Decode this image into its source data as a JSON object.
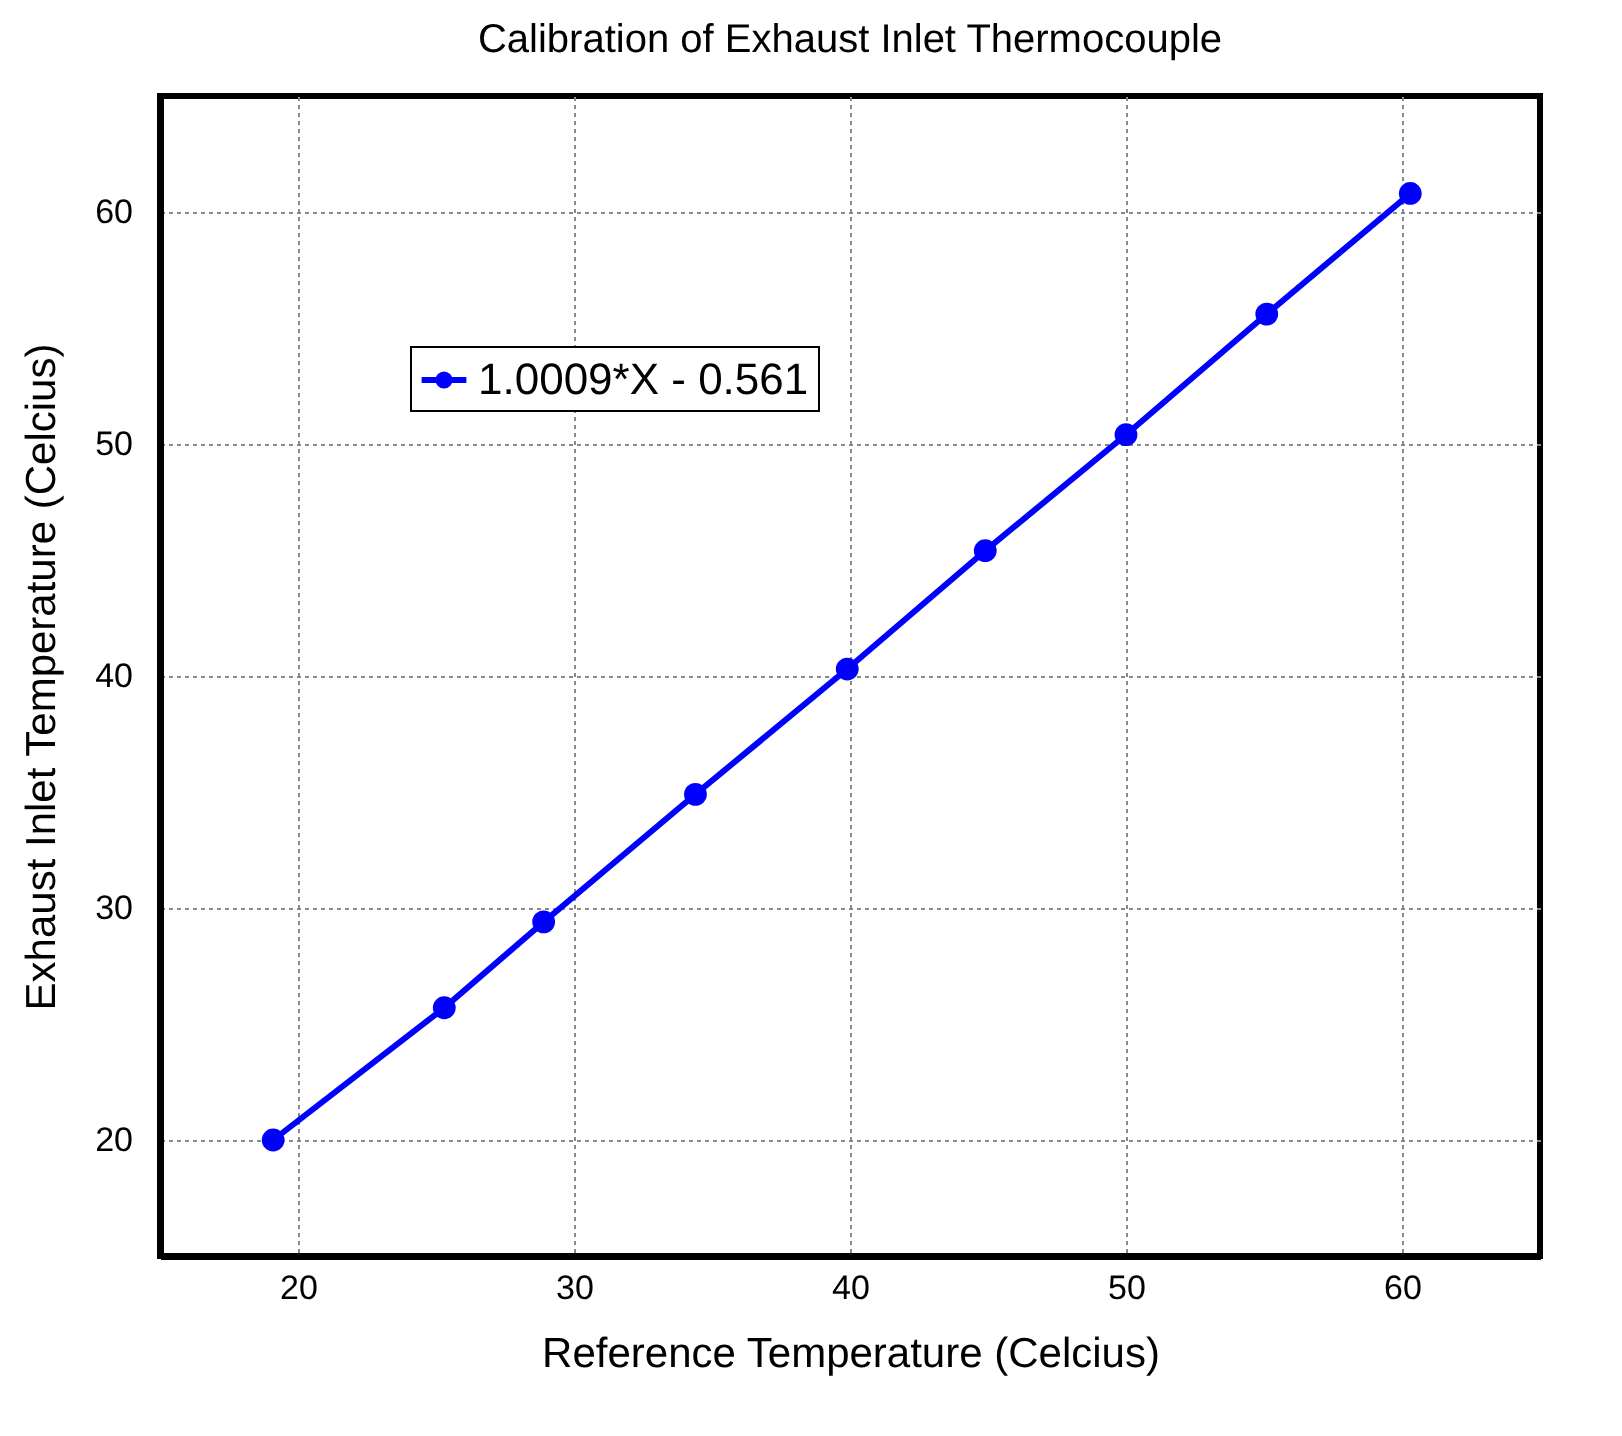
{
  "chart_data": {
    "type": "line",
    "title": "Calibration of Exhaust Inlet Thermocouple",
    "xlabel": "Reference Temperature (Celcius)",
    "ylabel": "Exhaust Inlet Temperature (Celcius)",
    "x": [
      19.1,
      25.3,
      28.9,
      34.4,
      39.9,
      44.9,
      50.0,
      55.1,
      60.3
    ],
    "series": [
      {
        "name": "1.0009*X - 0.561",
        "color": "#0000ff",
        "values": [
          20.0,
          25.7,
          29.4,
          34.9,
          40.3,
          45.4,
          50.4,
          55.6,
          60.8
        ]
      }
    ],
    "xlim": [
      15,
      65
    ],
    "ylim": [
      15,
      65
    ],
    "xticks": [
      20,
      30,
      40,
      50,
      60
    ],
    "yticks": [
      20,
      30,
      40,
      50,
      60
    ],
    "grid": true,
    "legend": "top left",
    "marker": "circle",
    "line_style": "solid"
  }
}
